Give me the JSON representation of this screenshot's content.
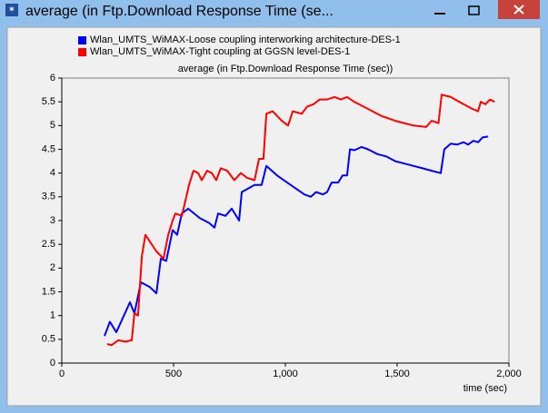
{
  "window": {
    "title": "average (in Ftp.Download Response Time (se..."
  },
  "chart_data": {
    "type": "line",
    "title": "average (in Ftp.Download Response Time (sec))",
    "x_label": "time (sec)",
    "xlim": [
      0,
      2000
    ],
    "xticks": [
      0,
      500,
      {
        "value": 1000,
        "label": "1,000"
      },
      {
        "value": 1500,
        "label": "1,500"
      },
      {
        "value": 2000,
        "label": "2,000"
      }
    ],
    "ylim": [
      0,
      6
    ],
    "yticks": [
      0,
      0.5,
      1,
      1.5,
      2,
      2.5,
      3,
      3.5,
      4,
      4.5,
      5,
      5.5,
      6
    ],
    "grid": false,
    "legend": "top",
    "series": [
      {
        "name": "Wlan_UMTS_WiMAX-Loose coupling interworking architecture-DES-1",
        "color": "#0000ff",
        "x": [
          191,
          215,
          244,
          305,
          325,
          354,
          394,
          423,
          443,
          467,
          496,
          516,
          537,
          565,
          618,
          659,
          683,
          699,
          732,
          760,
          793,
          805,
          862,
          894,
          915,
          963,
          1024,
          1085,
          1114,
          1138,
          1167,
          1187,
          1207,
          1236,
          1256,
          1276,
          1289,
          1309,
          1341,
          1370,
          1411,
          1451,
          1492,
          1533,
          1573,
          1614,
          1654,
          1695,
          1711,
          1740,
          1768,
          1797,
          1817,
          1841,
          1862,
          1882,
          1907
        ],
        "values": [
          0.57,
          0.87,
          0.65,
          1.28,
          1.05,
          1.7,
          1.6,
          1.47,
          2.2,
          2.15,
          2.8,
          2.7,
          3.15,
          3.25,
          3.05,
          2.95,
          2.85,
          3.15,
          3.1,
          3.25,
          3.0,
          3.6,
          3.75,
          3.75,
          4.15,
          3.95,
          3.75,
          3.55,
          3.5,
          3.6,
          3.55,
          3.6,
          3.8,
          3.8,
          3.95,
          3.95,
          4.5,
          4.48,
          4.55,
          4.5,
          4.4,
          4.35,
          4.25,
          4.2,
          4.15,
          4.1,
          4.05,
          4.0,
          4.5,
          4.62,
          4.6,
          4.65,
          4.6,
          4.68,
          4.65,
          4.75,
          4.77
        ]
      },
      {
        "name": "Wlan_UMTS_WiMAX-Tight coupling at GGSN level-DES-1",
        "color": "#ff0000",
        "x": [
          203,
          224,
          252,
          285,
          313,
          325,
          341,
          358,
          374,
          423,
          455,
          476,
          496,
          508,
          537,
          557,
          569,
          589,
          610,
          626,
          650,
          671,
          691,
          711,
          740,
          772,
          801,
          829,
          862,
          882,
          902,
          915,
          943,
          984,
          1012,
          1033,
          1073,
          1098,
          1126,
          1154,
          1187,
          1220,
          1248,
          1276,
          1309,
          1370,
          1431,
          1492,
          1573,
          1630,
          1654,
          1685,
          1699,
          1740,
          1797,
          1837,
          1862,
          1874,
          1895,
          1915,
          1936
        ],
        "values": [
          0.4,
          0.38,
          0.48,
          0.45,
          0.48,
          1.05,
          1.0,
          2.25,
          2.7,
          2.35,
          2.2,
          2.7,
          3.0,
          3.15,
          3.1,
          3.5,
          3.75,
          4.05,
          4.0,
          3.85,
          4.05,
          4.0,
          3.85,
          4.1,
          4.05,
          3.85,
          4.0,
          3.9,
          3.85,
          4.3,
          4.3,
          5.25,
          5.3,
          5.1,
          5.0,
          5.3,
          5.25,
          5.4,
          5.45,
          5.55,
          5.55,
          5.6,
          5.55,
          5.6,
          5.5,
          5.35,
          5.2,
          5.1,
          5.0,
          4.97,
          5.1,
          5.05,
          5.65,
          5.6,
          5.45,
          5.35,
          5.3,
          5.5,
          5.45,
          5.55,
          5.5
        ]
      }
    ]
  }
}
